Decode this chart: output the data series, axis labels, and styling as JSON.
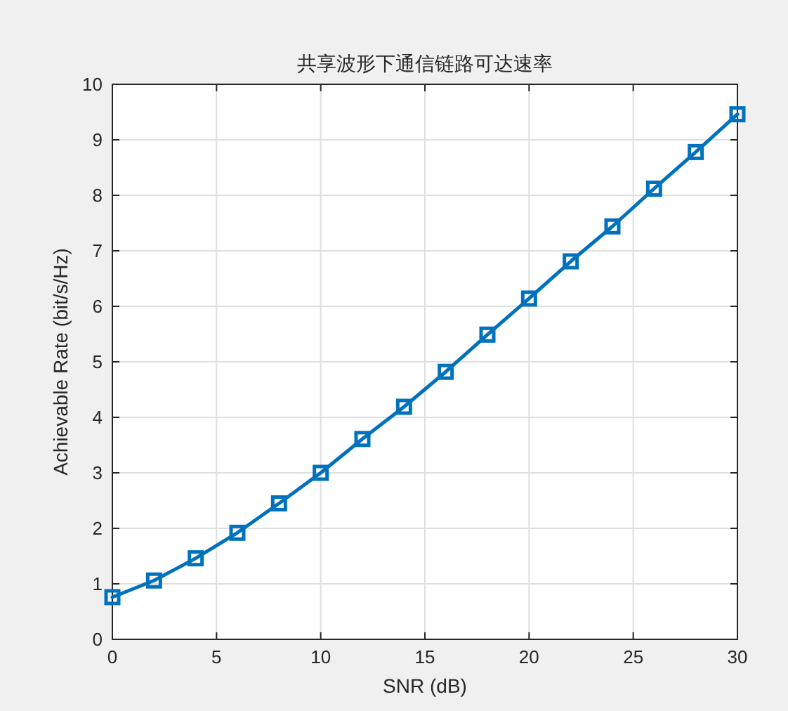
{
  "chart_data": {
    "type": "line",
    "title": "共享波形下通信链路可达速率",
    "xlabel": "SNR (dB)",
    "ylabel": "Achievable Rate (bit/s/Hz)",
    "x": [
      0,
      2,
      4,
      6,
      8,
      10,
      12,
      14,
      16,
      18,
      20,
      22,
      24,
      26,
      28,
      30
    ],
    "series": [
      {
        "color": "#0072bd",
        "values": [
          0.76,
          1.06,
          1.46,
          1.92,
          2.45,
          3.0,
          3.61,
          4.19,
          4.82,
          5.49,
          6.14,
          6.81,
          7.44,
          8.12,
          8.78,
          9.46
        ]
      }
    ],
    "xlim": [
      0,
      30
    ],
    "ylim": [
      0,
      10
    ],
    "xticks": [
      0,
      5,
      10,
      15,
      20,
      25,
      30
    ],
    "yticks": [
      0,
      1,
      2,
      3,
      4,
      5,
      6,
      7,
      8,
      9,
      10
    ],
    "grid": true,
    "marker": "square",
    "line_style": "solid"
  }
}
